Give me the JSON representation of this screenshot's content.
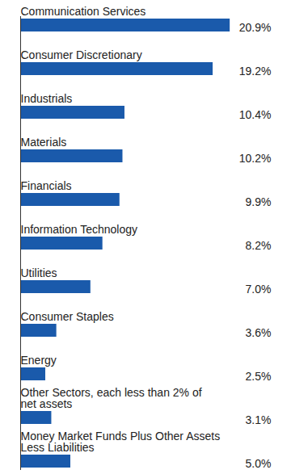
{
  "chart_data": {
    "type": "bar",
    "orientation": "horizontal",
    "categories": [
      "Communication Services",
      "Consumer Discretionary",
      "Industrials",
      "Materials",
      "Financials",
      "Information Technology",
      "Utilities",
      "Consumer Staples",
      "Energy",
      "Other Sectors, each less than 2% of\nnet assets",
      "Money Market Funds Plus Other Assets\nLess Liabilities"
    ],
    "values": [
      20.9,
      19.2,
      10.4,
      10.2,
      9.9,
      8.2,
      7.0,
      3.6,
      2.5,
      3.1,
      5.0
    ],
    "value_labels": [
      "20.9%",
      "19.2%",
      "10.4%",
      "10.2%",
      "9.9%",
      "8.2%",
      "7.0%",
      "3.6%",
      "2.5%",
      "3.1%",
      "5.0%"
    ],
    "color": "#1a5aab",
    "xlim": [
      0,
      25
    ],
    "data_labels": true,
    "tick_labels": false,
    "grid": false
  }
}
